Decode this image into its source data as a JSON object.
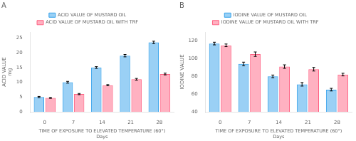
{
  "chart_data": [
    {
      "type": "bar",
      "annotations": [
        "A"
      ],
      "x_label": "TIME OF EXPOSURE TO ELEVATED TEMPERATURE (60°)\nDays",
      "y_label": "ACID VALUE\nmg",
      "categories": [
        "0",
        "7",
        "14",
        "21",
        "28"
      ],
      "series": [
        {
          "name": "ACID VALUE OF MUSTARD OIL",
          "values": [
            5.0,
            10.0,
            15.0,
            19.0,
            23.5
          ],
          "errors": [
            0.2,
            0.3,
            0.3,
            0.4,
            0.4
          ]
        },
        {
          "name": "ACID VALUE OF MUSTARD OIL WITH TRF",
          "values": [
            4.7,
            6.0,
            9.0,
            11.0,
            12.8
          ],
          "errors": [
            0.15,
            0.2,
            0.2,
            0.3,
            0.3
          ]
        }
      ],
      "ylim": [
        0,
        27
      ],
      "yticks": [
        0,
        5,
        10,
        15,
        20,
        25
      ],
      "grid": false,
      "legend": "top"
    },
    {
      "type": "bar",
      "annotations": [
        "B"
      ],
      "x_label": "TIME OF EXPOSURE TO ELEVATED TEMPERATURE (60°)\nDays",
      "y_label": "IODINE VALUE",
      "categories": [
        "0",
        "7",
        "14",
        "21",
        "28"
      ],
      "series": [
        {
          "name": "IODINE VALUE OF MUSTARD OIL",
          "values": [
            117.0,
            94.0,
            80.0,
            71.0,
            65.0
          ],
          "errors": [
            1.5,
            2.0,
            1.5,
            2.0,
            1.5
          ]
        },
        {
          "name": "IODINE VALUE OF MUSTARD OIL WITH TRF",
          "values": [
            115.0,
            105.0,
            91.0,
            88.0,
            82.0
          ],
          "errors": [
            1.5,
            2.5,
            2.0,
            2.0,
            1.5
          ]
        }
      ],
      "ylim": [
        40,
        130
      ],
      "yticks": [
        40,
        60,
        80,
        100,
        120
      ],
      "grid": false,
      "legend": "top"
    }
  ]
}
